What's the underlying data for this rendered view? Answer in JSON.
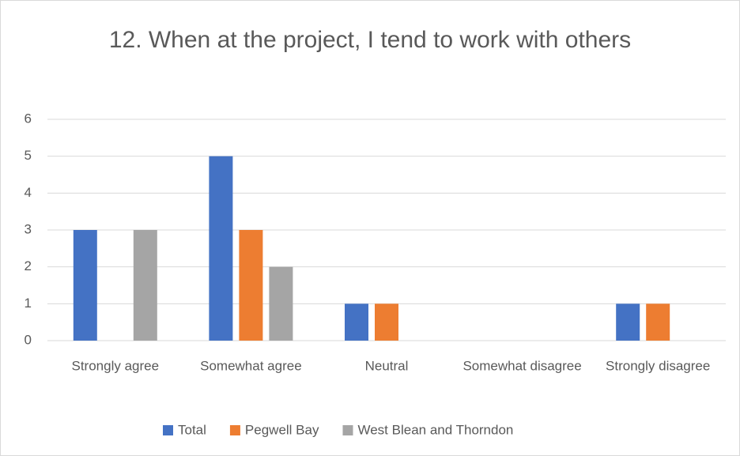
{
  "chart_data": {
    "type": "bar",
    "title": "12. When at the project, I tend to work with others",
    "categories": [
      "Strongly agree",
      "Somewhat agree",
      "Neutral",
      "Somewhat disagree",
      "Strongly disagree"
    ],
    "series": [
      {
        "name": "Total",
        "color": "#4472c4",
        "values": [
          3,
          5,
          1,
          0,
          1
        ]
      },
      {
        "name": "Pegwell Bay",
        "color": "#ed7d31",
        "values": [
          0,
          3,
          1,
          0,
          1
        ]
      },
      {
        "name": "West Blean and Thorndon",
        "color": "#a5a5a5",
        "values": [
          3,
          2,
          0,
          0,
          0
        ]
      }
    ],
    "ylim": [
      0,
      6
    ],
    "yticks": [
      0,
      1,
      2,
      3,
      4,
      5,
      6
    ],
    "grid": true,
    "legend": "bottom"
  }
}
